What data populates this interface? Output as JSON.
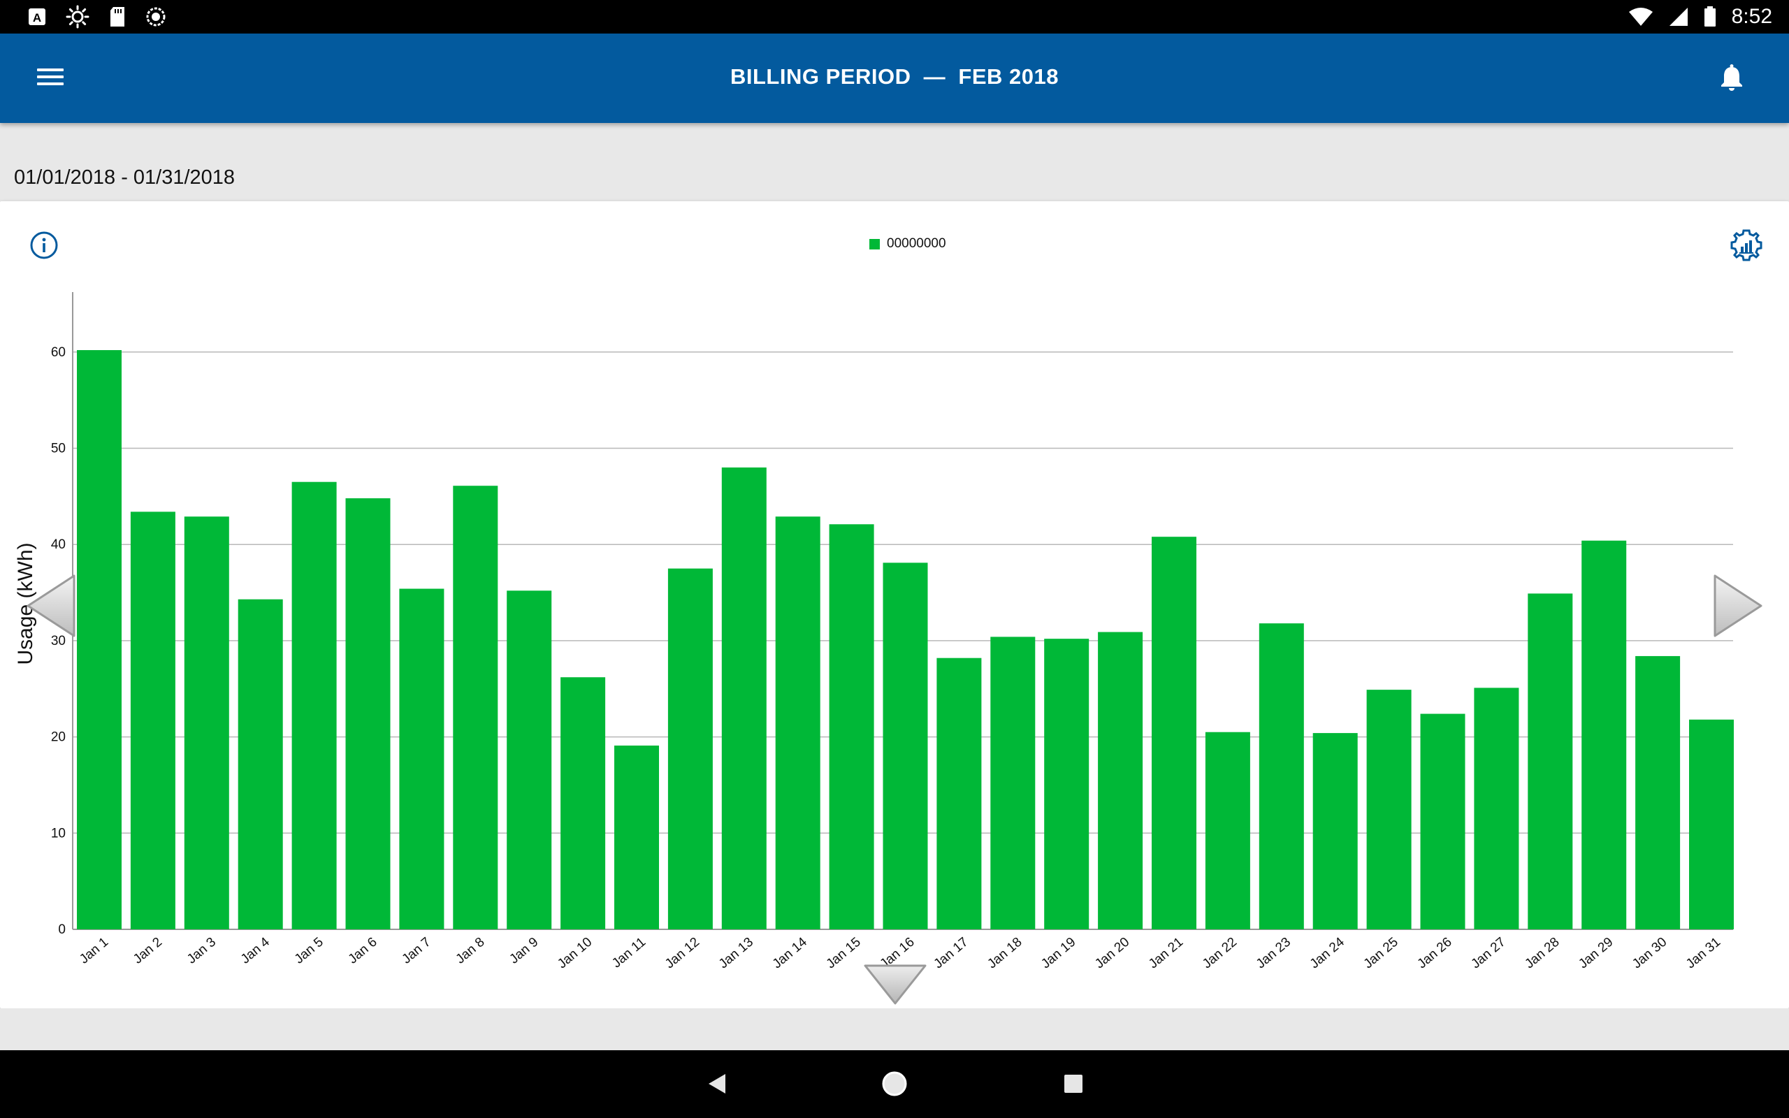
{
  "status_bar": {
    "time": "8:52",
    "left_icons": [
      "font-a-icon",
      "brightness-icon",
      "sd-card-icon",
      "sync-icon"
    ],
    "right_icons": [
      "wifi-icon",
      "signal-icon",
      "battery-icon"
    ]
  },
  "app_bar": {
    "title": "BILLING PERIOD  —  FEB 2018",
    "background": "#035a9e"
  },
  "date_range": "01/01/2018 - 01/31/2018",
  "legend": {
    "label": "00000000",
    "color": "#00b837"
  },
  "chart_data": {
    "type": "bar",
    "title": "",
    "xlabel": "",
    "ylabel": "Usage (kWh)",
    "ylim": [
      0,
      66
    ],
    "yticks": [
      0,
      10,
      20,
      30,
      40,
      50,
      60
    ],
    "grid": true,
    "legend_position": "top",
    "categories": [
      "Jan 1",
      "Jan 2",
      "Jan 3",
      "Jan 4",
      "Jan 5",
      "Jan 6",
      "Jan 7",
      "Jan 8",
      "Jan 9",
      "Jan 10",
      "Jan 11",
      "Jan 12",
      "Jan 13",
      "Jan 14",
      "Jan 15",
      "Jan 16",
      "Jan 17",
      "Jan 18",
      "Jan 19",
      "Jan 20",
      "Jan 21",
      "Jan 22",
      "Jan 23",
      "Jan 24",
      "Jan 25",
      "Jan 26",
      "Jan 27",
      "Jan 28",
      "Jan 29",
      "Jan 30",
      "Jan 31"
    ],
    "series": [
      {
        "name": "00000000",
        "color": "#00b837",
        "values": [
          60.2,
          43.4,
          42.9,
          34.3,
          46.5,
          44.8,
          35.4,
          46.1,
          35.2,
          26.2,
          19.1,
          37.5,
          48.0,
          42.9,
          42.1,
          38.1,
          28.2,
          30.4,
          30.2,
          30.9,
          40.8,
          20.5,
          31.8,
          20.4,
          24.9,
          22.4,
          25.1,
          34.9,
          40.4,
          28.4,
          21.8
        ]
      }
    ]
  }
}
